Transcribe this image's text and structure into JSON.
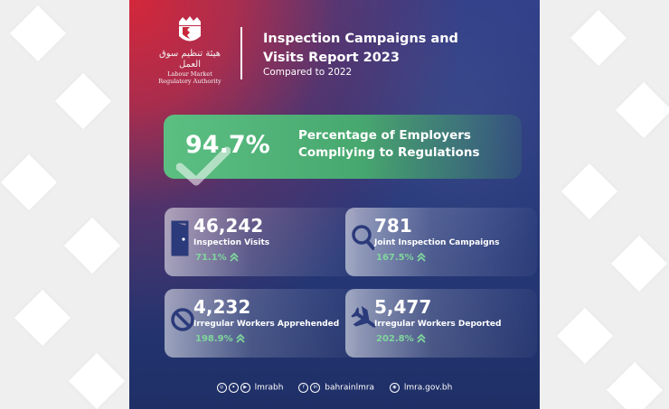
{
  "logo": {
    "arabic": "هيئة تنظيم سوق العمل",
    "english_line1": "Labour Market",
    "english_line2": "Regulatory Authority"
  },
  "header": {
    "title_line1": "Inspection Campaigns and",
    "title_line2": "Visits Report 2023",
    "subtitle": "Compared to 2022"
  },
  "hero": {
    "value": "94.7%",
    "label_line1": "Percentage of Employers",
    "label_line2": "Compliying to Regulations"
  },
  "cards": [
    {
      "value": "46,242",
      "label": "Inspection Visits",
      "change": "71.1%",
      "icon": "door-icon"
    },
    {
      "value": "781",
      "label": "Joint Inspection Campaigns",
      "change": "167.5%",
      "icon": "magnifier-icon"
    },
    {
      "value": "4,232",
      "label": "Irregular Workers Apprehended",
      "change": "198.9%",
      "icon": "prohibited-icon"
    },
    {
      "value": "5,477",
      "label": "Irregular Workers Deported",
      "change": "202.8%",
      "icon": "airplane-icon"
    }
  ],
  "footer": {
    "handle1": "lmrabh",
    "handle2": "bahrainlmra",
    "website": "lmra.gov.bh"
  },
  "colors": {
    "accent_green": "#5cbf82",
    "change_green": "#7fd69c",
    "navy": "#27397a",
    "red": "#d4273a"
  }
}
